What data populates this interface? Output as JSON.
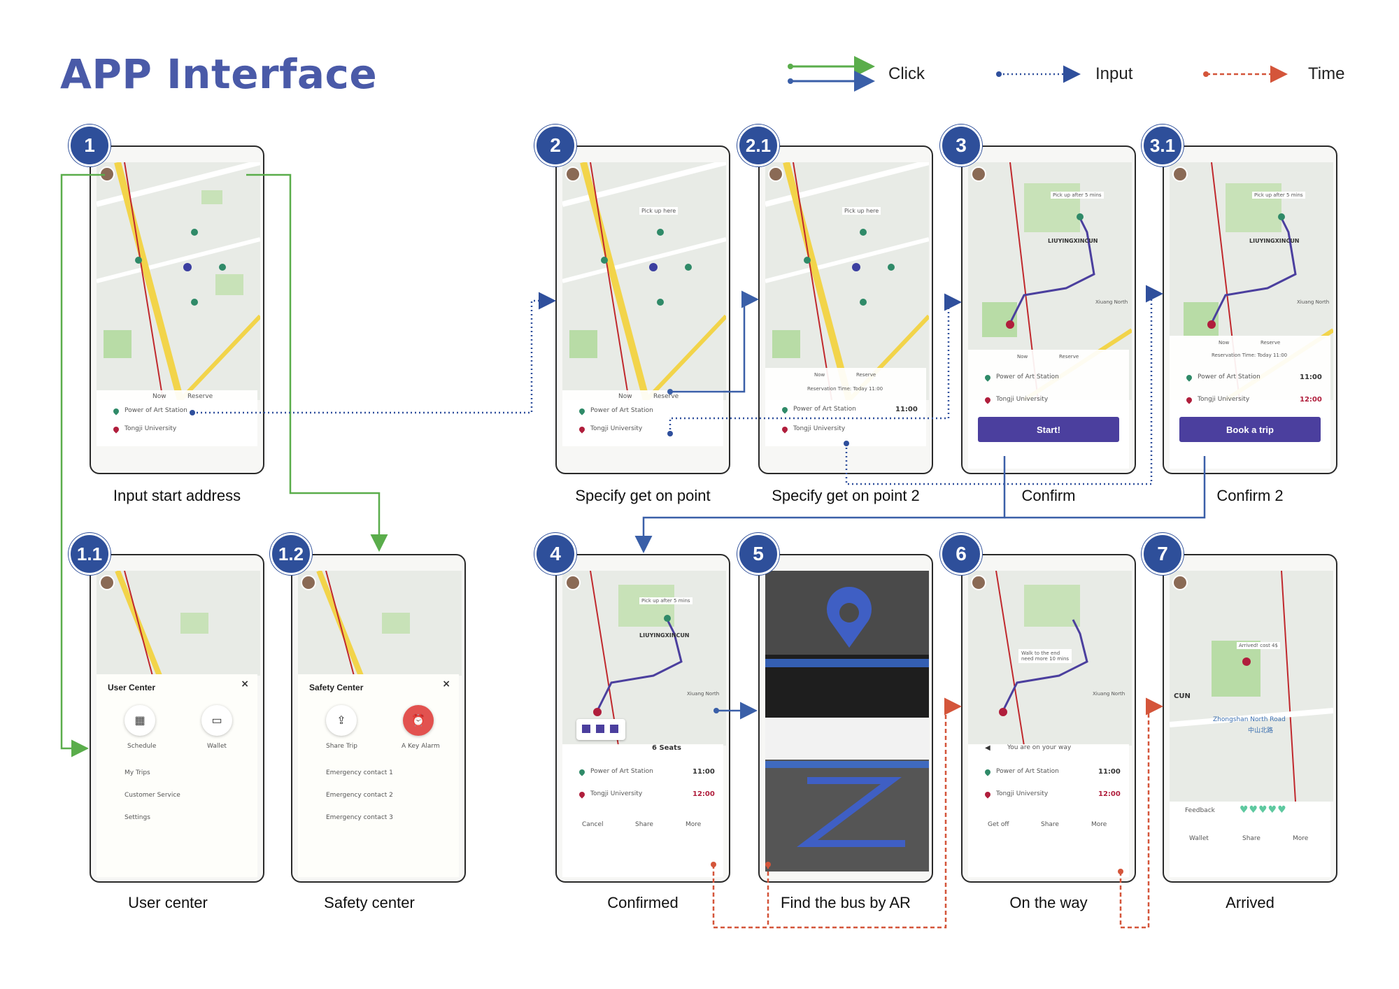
{
  "title": "APP Interface",
  "legend": {
    "click": "Click",
    "input": "Input",
    "time": "Time"
  },
  "colors": {
    "click_green": "#5aad4b",
    "click_blue": "#3a5fa8",
    "input": "#2f4f9c",
    "time": "#d4553a",
    "badge": "#2e4f9a"
  },
  "screens": [
    {
      "id": "s1",
      "badge": "1",
      "caption": "Input start address"
    },
    {
      "id": "s11",
      "badge": "1.1",
      "caption": "User center"
    },
    {
      "id": "s12",
      "badge": "1.2",
      "caption": "Safety center"
    },
    {
      "id": "s2",
      "badge": "2",
      "caption": "Specify get on point"
    },
    {
      "id": "s21",
      "badge": "2.1",
      "caption": "Specify get on point 2"
    },
    {
      "id": "s3",
      "badge": "3",
      "caption": "Confirm"
    },
    {
      "id": "s31",
      "badge": "3.1",
      "caption": "Confirm 2"
    },
    {
      "id": "s4",
      "badge": "4",
      "caption": "Confirmed"
    },
    {
      "id": "s5",
      "badge": "5",
      "caption": "Find the bus by AR"
    },
    {
      "id": "s6",
      "badge": "6",
      "caption": "On the way"
    },
    {
      "id": "s7",
      "badge": "7",
      "caption": "Arrived"
    }
  ],
  "ui": {
    "start_station": "Power of Art Station",
    "end_station": "Tongji University",
    "tab_now": "Now",
    "tab_reserve": "Reserve",
    "pick_up_here": "Pick up here",
    "pick_up_after": "Pick up after 5 mins",
    "reservation_time": "Reservation Time: Today 11:00",
    "time_start": "11:00",
    "time_end": "12:00",
    "start_btn": "Start!",
    "book_btn": "Book a trip",
    "seats": "6 Seats",
    "cancel": "Cancel",
    "share": "Share",
    "more": "More",
    "get_off": "Get off",
    "wallet": "Wallet",
    "on_your_way": "You are on your way",
    "feedback": "Feedback",
    "arrived_cost": "Arrived! cost 4$",
    "walk_notice": "Walk to the end\nneed more 10 mins",
    "place_liuying": "LIUYINGXINCUN",
    "place_xiuang": "Xiuang North",
    "place_zhongshan": "Zhongshan North Road",
    "place_zhongshan_cn": "中山北路",
    "place_cun": "CUN",
    "user_center": {
      "title": "User Center",
      "schedule": "Schedule",
      "wallet": "Wallet",
      "items": [
        "My Trips",
        "Customer Service",
        "Settings"
      ]
    },
    "safety_center": {
      "title": "Safety Center",
      "share_trip": "Share Trip",
      "alarm": "A Key Alarm",
      "items": [
        "Emergency contact 1",
        "Emergency contact 2",
        "Emergency contact 3"
      ]
    }
  }
}
